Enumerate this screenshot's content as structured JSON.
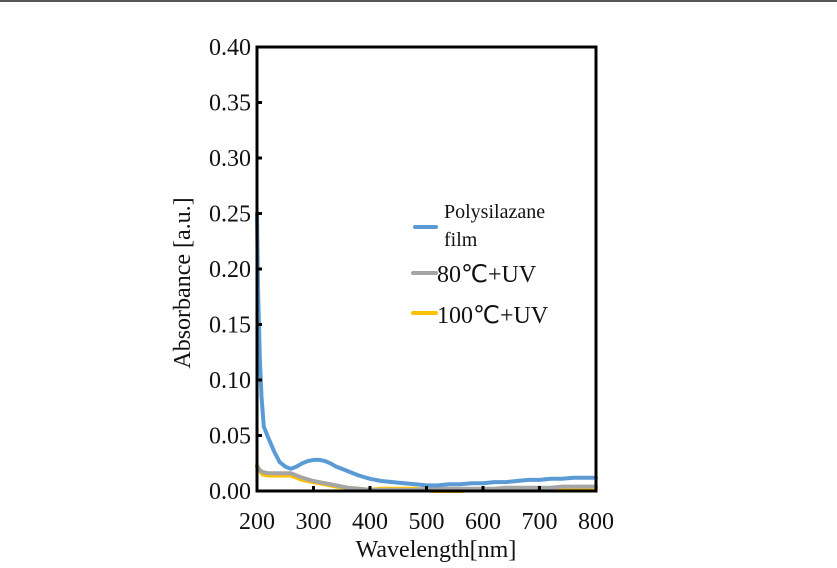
{
  "chart_data": {
    "type": "line",
    "title": "",
    "xlabel": "Wavelength[nm]",
    "ylabel": "Absorbance [a.u.]",
    "xlim": [
      200,
      800
    ],
    "ylim": [
      0.0,
      0.4
    ],
    "xticks": [
      200,
      300,
      400,
      500,
      600,
      700,
      800
    ],
    "xtick_labels": [
      "200",
      "300",
      "400",
      "500",
      "600",
      "700",
      "800"
    ],
    "yticks": [
      0.0,
      0.05,
      0.1,
      0.15,
      0.2,
      0.25,
      0.3,
      0.35,
      0.4
    ],
    "ytick_labels": [
      "0.00",
      "0.05",
      "0.10",
      "0.15",
      "0.20",
      "0.25",
      "0.30",
      "0.35",
      "0.40"
    ],
    "grid": false,
    "legend_position": "center-right",
    "series": [
      {
        "name": "Polysilazane film",
        "legend_lines": [
          "Polysilazane",
          "film"
        ],
        "color": "#5B9BD5",
        "x": [
          200,
          202,
          205,
          208,
          212,
          220,
          230,
          240,
          250,
          260,
          270,
          280,
          290,
          300,
          310,
          320,
          330,
          340,
          350,
          360,
          380,
          400,
          420,
          440,
          460,
          480,
          500,
          520,
          540,
          560,
          580,
          600,
          620,
          640,
          660,
          680,
          700,
          720,
          740,
          760,
          780,
          800
        ],
        "y": [
          0.25,
          0.18,
          0.12,
          0.085,
          0.058,
          0.048,
          0.036,
          0.026,
          0.022,
          0.02,
          0.022,
          0.025,
          0.027,
          0.028,
          0.028,
          0.027,
          0.025,
          0.022,
          0.02,
          0.018,
          0.014,
          0.011,
          0.009,
          0.008,
          0.007,
          0.006,
          0.005,
          0.005,
          0.006,
          0.006,
          0.007,
          0.007,
          0.008,
          0.008,
          0.009,
          0.01,
          0.01,
          0.011,
          0.011,
          0.012,
          0.012,
          0.012
        ]
      },
      {
        "name": "80℃+UV",
        "legend_lines": [
          "80℃+UV"
        ],
        "color": "#A5A5A5",
        "x": [
          200,
          205,
          210,
          220,
          240,
          260,
          270,
          280,
          300,
          320,
          340,
          360,
          380,
          400,
          420,
          440,
          460,
          480,
          500,
          520,
          540,
          560,
          580,
          600,
          620,
          640,
          660,
          680,
          700,
          720,
          740,
          760,
          780,
          800
        ],
        "y": [
          0.022,
          0.019,
          0.017,
          0.016,
          0.016,
          0.016,
          0.014,
          0.012,
          0.009,
          0.007,
          0.005,
          0.003,
          0.002,
          0.001,
          0.001,
          0.001,
          0.001,
          0.001,
          0.002,
          0.002,
          0.002,
          0.002,
          0.002,
          0.002,
          0.002,
          0.003,
          0.003,
          0.003,
          0.003,
          0.003,
          0.004,
          0.004,
          0.004,
          0.004
        ]
      },
      {
        "name": "100℃+UV",
        "legend_lines": [
          "100℃+UV"
        ],
        "color": "#FFC000",
        "x": [
          200,
          205,
          210,
          220,
          240,
          260,
          270,
          280,
          300,
          320,
          340,
          360,
          380,
          400,
          420,
          440,
          460,
          480,
          500,
          510,
          520,
          540,
          560,
          580,
          600,
          620,
          640,
          660,
          680,
          700,
          720,
          740,
          760,
          780,
          800
        ],
        "y": [
          0.023,
          0.018,
          0.015,
          0.014,
          0.014,
          0.014,
          0.012,
          0.01,
          0.008,
          0.006,
          0.004,
          0.003,
          0.002,
          0.001,
          0.002,
          0.002,
          0.002,
          0.002,
          0.001,
          0.0,
          0.0,
          0.0,
          0.0,
          0.001,
          0.001,
          0.001,
          0.001,
          0.002,
          0.002,
          0.002,
          0.002,
          0.003,
          0.003,
          0.003,
          0.003
        ]
      }
    ]
  }
}
